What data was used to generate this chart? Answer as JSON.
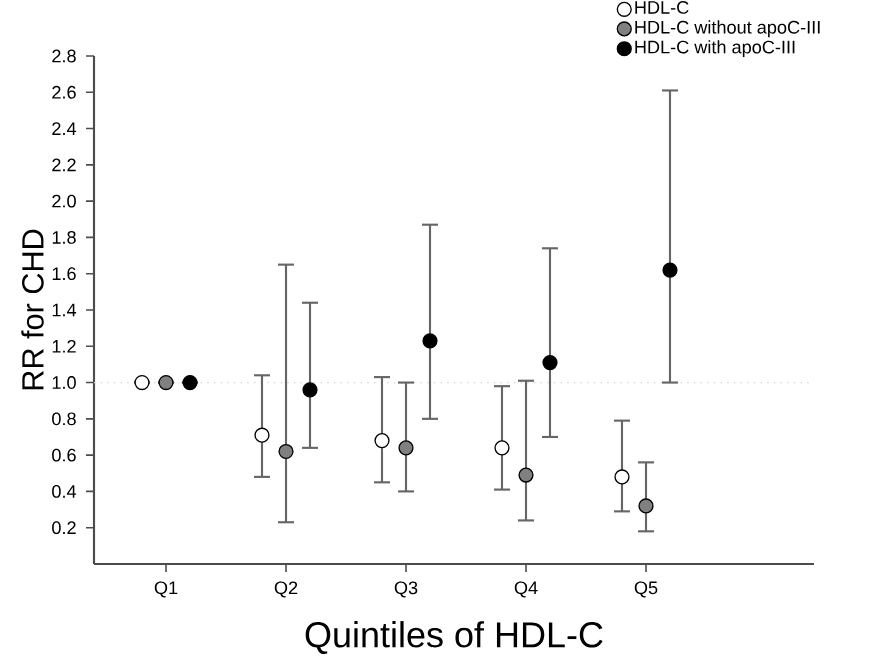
{
  "chart_data": {
    "type": "scatter",
    "xlabel": "Quintiles of HDL-C",
    "ylabel": "RR for CHD",
    "categories": [
      "Q1",
      "Q2",
      "Q3",
      "Q4",
      "Q5"
    ],
    "series": [
      {
        "name": "HDL-C",
        "color": "#ffffff",
        "values": [
          1.0,
          0.71,
          0.68,
          0.64,
          0.48
        ],
        "errors": [
          null,
          [
            0.48,
            1.04
          ],
          [
            0.45,
            1.03
          ],
          [
            0.41,
            0.98
          ],
          [
            0.29,
            0.79
          ]
        ]
      },
      {
        "name": "HDL-C without apoC-III",
        "color": "#808080",
        "values": [
          1.0,
          0.62,
          0.64,
          0.49,
          0.32
        ],
        "errors": [
          null,
          [
            0.23,
            1.65
          ],
          [
            0.4,
            1.0
          ],
          [
            0.24,
            1.01
          ],
          [
            0.18,
            0.56
          ]
        ]
      },
      {
        "name": "HDL-C with apoC-III",
        "color": "#000000",
        "values": [
          1.0,
          0.96,
          1.23,
          1.11,
          1.62
        ],
        "errors": [
          null,
          [
            0.64,
            1.44
          ],
          [
            0.8,
            1.87
          ],
          [
            0.7,
            1.74
          ],
          [
            1.0,
            2.61
          ]
        ]
      }
    ],
    "ylim": [
      0,
      2.8
    ],
    "yticks": [
      0.2,
      0.4,
      0.6,
      0.8,
      {
        "value": 1.0,
        "label": "1.0"
      },
      1.2,
      1.4,
      1.6,
      1.8,
      {
        "value": 2.0,
        "label": "2.0"
      },
      2.2,
      2.4,
      2.6,
      2.8
    ],
    "ref_lines": [
      {
        "axis": "y",
        "value": 1.0,
        "color": "#d0d0d0",
        "line_style": "dotted"
      }
    ],
    "marker": "circle",
    "legend": "top right",
    "grid": false
  }
}
